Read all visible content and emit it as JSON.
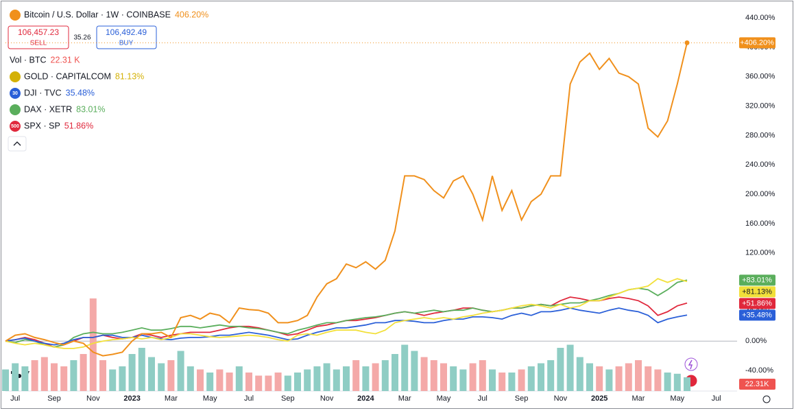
{
  "header": {
    "sell_price": "106,457.23",
    "sell_label": "SELL",
    "spread": "35.26",
    "buy_price": "106,492.49",
    "buy_label": "BUY"
  },
  "chart_data": {
    "type": "line",
    "categories": [
      null,
      "Jul",
      null,
      null,
      null,
      "Sep",
      null,
      null,
      null,
      "Nov",
      null,
      null,
      null,
      "2023",
      null,
      null,
      null,
      "Mar",
      null,
      null,
      null,
      "May",
      null,
      null,
      null,
      "Jul",
      null,
      null,
      null,
      "Sep",
      null,
      null,
      null,
      "Nov",
      null,
      null,
      null,
      "2024",
      null,
      null,
      null,
      "Mar",
      null,
      null,
      null,
      "May",
      null,
      null,
      null,
      "Jul",
      null,
      null,
      null,
      "Sep",
      null,
      null,
      null,
      "Nov",
      null,
      null,
      null,
      "2025",
      null,
      null,
      null,
      "Mar",
      null,
      null,
      null,
      "May",
      null,
      null,
      null,
      "Jul"
    ],
    "ylim": [
      -68,
      457
    ],
    "yticks": [
      {
        "value": -40,
        "label": "-40.00%"
      },
      {
        "value": 0,
        "label": "0.00%"
      },
      {
        "value": 40,
        "label": "40.00%"
      },
      {
        "value": 80,
        "label": "80.00%"
      },
      {
        "value": 120,
        "label": "120.00%"
      },
      {
        "value": 160,
        "label": "160.00%"
      },
      {
        "value": 200,
        "label": "200.00%"
      },
      {
        "value": 240,
        "label": "240.00%"
      },
      {
        "value": 280,
        "label": "280.00%"
      },
      {
        "value": 320,
        "label": "320.00%"
      },
      {
        "value": 360,
        "label": "360.00%"
      },
      {
        "value": 400,
        "label": "400.00%"
      },
      {
        "value": 440,
        "label": "440.00%"
      }
    ],
    "series": [
      {
        "name": "Bitcoin / U.S. Dollar · 1W · COINBASE",
        "color": "#f0901c",
        "legend_value": "406.20%",
        "last_label": "+406.20%",
        "values": [
          0,
          8,
          10,
          5,
          2,
          -2,
          -5,
          0,
          -3,
          -15,
          -20,
          -18,
          -15,
          0,
          10,
          10,
          12,
          5,
          32,
          35,
          30,
          38,
          35,
          25,
          45,
          43,
          42,
          38,
          25,
          25,
          28,
          35,
          60,
          78,
          85,
          105,
          100,
          108,
          98,
          110,
          150,
          225,
          225,
          220,
          205,
          195,
          218,
          225,
          200,
          165,
          225,
          178,
          205,
          165,
          190,
          200,
          225,
          225,
          350,
          380,
          392,
          370,
          385,
          365,
          360,
          350,
          290,
          278,
          300,
          350,
          406.2,
          null,
          null,
          null
        ]
      },
      {
        "name": "GOLD · CAPITALCOM",
        "color": "#f2e03a",
        "legend_value": "81.13%",
        "last_label": "+81.13%",
        "values": [
          0,
          -3,
          -5,
          -3,
          -5,
          -8,
          -10,
          -10,
          -8,
          -3,
          0,
          2,
          3,
          5,
          3,
          5,
          2,
          5,
          10,
          10,
          8,
          6,
          5,
          6,
          7,
          8,
          7,
          5,
          2,
          0,
          8,
          10,
          8,
          12,
          15,
          15,
          15,
          12,
          10,
          15,
          25,
          28,
          30,
          32,
          30,
          32,
          30,
          33,
          35,
          38,
          40,
          42,
          45,
          48,
          50,
          48,
          45,
          50,
          45,
          48,
          55,
          55,
          60,
          65,
          70,
          72,
          75,
          85,
          80,
          85,
          81.13,
          null,
          null,
          null
        ]
      },
      {
        "name": "DJI · TVC",
        "color": "#2a5fd8",
        "legend_value": "35.48%",
        "last_label": "+35.48%",
        "badge": "30",
        "values": [
          0,
          2,
          4,
          0,
          -3,
          -5,
          -3,
          2,
          5,
          5,
          8,
          8,
          5,
          5,
          8,
          5,
          3,
          2,
          4,
          5,
          5,
          6,
          8,
          8,
          10,
          12,
          10,
          8,
          5,
          2,
          3,
          8,
          12,
          15,
          18,
          18,
          20,
          22,
          25,
          25,
          28,
          28,
          27,
          25,
          25,
          28,
          30,
          30,
          33,
          33,
          32,
          30,
          35,
          38,
          35,
          40,
          40,
          42,
          45,
          42,
          40,
          38,
          42,
          45,
          42,
          40,
          35,
          25,
          30,
          33,
          35.48,
          null,
          null,
          null
        ]
      },
      {
        "name": "DAX · XETR",
        "color": "#5aae5c",
        "legend_value": "83.01%",
        "last_label": "+83.01%",
        "values": [
          0,
          -2,
          2,
          0,
          -5,
          -8,
          -5,
          5,
          10,
          12,
          10,
          10,
          12,
          15,
          18,
          15,
          15,
          17,
          20,
          20,
          18,
          20,
          22,
          20,
          20,
          18,
          17,
          15,
          12,
          10,
          15,
          18,
          22,
          25,
          25,
          28,
          30,
          32,
          33,
          35,
          38,
          40,
          38,
          40,
          42,
          40,
          42,
          42,
          45,
          42,
          40,
          42,
          45,
          45,
          48,
          50,
          48,
          50,
          52,
          52,
          55,
          58,
          62,
          65,
          70,
          72,
          70,
          62,
          70,
          80,
          83.01,
          null,
          null,
          null
        ]
      },
      {
        "name": "SPX · SP",
        "color": "#e0283c",
        "legend_value": "51.86%",
        "last_label": "+51.86%",
        "badge": "500",
        "values": [
          0,
          2,
          5,
          2,
          -3,
          -8,
          -5,
          0,
          5,
          5,
          8,
          5,
          3,
          5,
          10,
          8,
          5,
          8,
          10,
          12,
          12,
          12,
          15,
          18,
          20,
          20,
          18,
          15,
          12,
          8,
          10,
          15,
          20,
          22,
          25,
          28,
          28,
          30,
          32,
          35,
          38,
          40,
          38,
          35,
          38,
          40,
          42,
          45,
          45,
          42,
          40,
          42,
          45,
          45,
          48,
          50,
          48,
          55,
          60,
          58,
          55,
          55,
          58,
          60,
          58,
          55,
          48,
          35,
          40,
          48,
          51.86,
          null,
          null,
          null
        ]
      }
    ],
    "volume": {
      "name": "Vol · BTC",
      "legend_value": "22.31 K",
      "last_label": "22.31K",
      "up_color": "#8fcdc4",
      "down_color": "#f4a9a8",
      "values": [
        35,
        45,
        40,
        50,
        55,
        45,
        40,
        50,
        60,
        150,
        50,
        35,
        40,
        60,
        70,
        55,
        45,
        50,
        65,
        40,
        35,
        30,
        35,
        30,
        40,
        30,
        25,
        25,
        30,
        25,
        30,
        35,
        40,
        45,
        35,
        40,
        50,
        40,
        45,
        50,
        60,
        75,
        65,
        55,
        50,
        45,
        40,
        35,
        45,
        50,
        35,
        30,
        30,
        35,
        40,
        45,
        50,
        70,
        75,
        55,
        45,
        40,
        35,
        40,
        45,
        50,
        40,
        35,
        30,
        28,
        22.31,
        null,
        null,
        null
      ]
    }
  }
}
